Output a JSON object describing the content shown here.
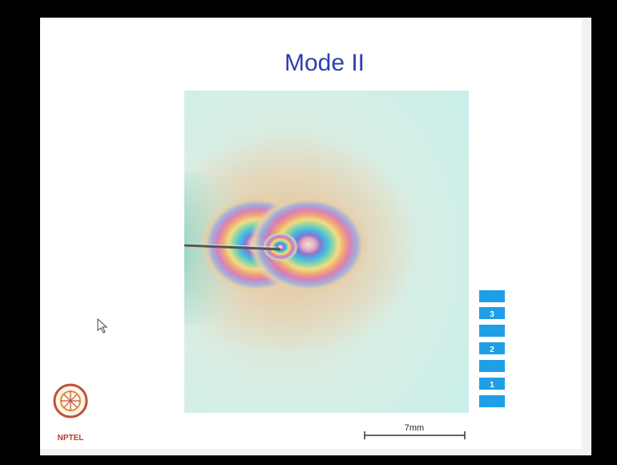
{
  "slide": {
    "title": "Mode II",
    "fringe_order_labels": [
      "3",
      "2",
      "1"
    ],
    "scale_label": "7mm",
    "logo_text": "NPTEL"
  }
}
